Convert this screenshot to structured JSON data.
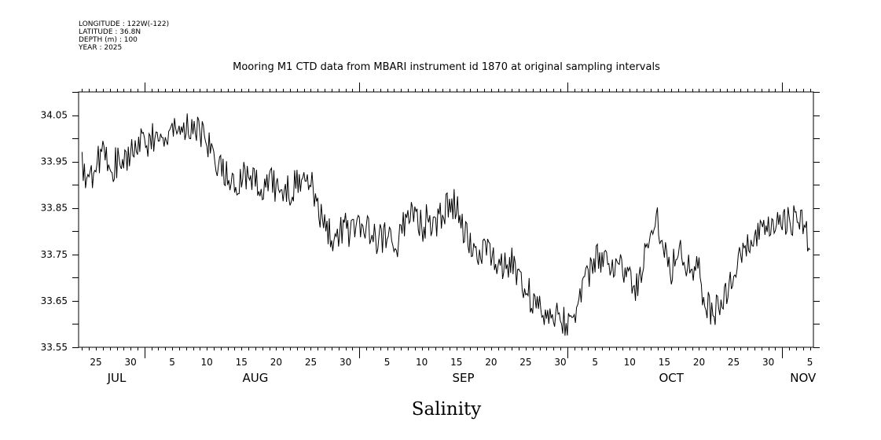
{
  "header": {
    "longitude": "LONGITUDE : 122W(-122)",
    "latitude": "LATITUDE : 36.8N",
    "depth": "DEPTH (m) : 100",
    "year": "YEAR : 2025"
  },
  "chart_data": {
    "type": "line",
    "title": "Mooring M1 CTD data from MBARI instrument id 1870 at original sampling intervals",
    "xlabel": "Salinity",
    "ylabel": "",
    "x_range": [
      "2025-07-23",
      "2025-11-05"
    ],
    "ylim": [
      33.55,
      34.1
    ],
    "y_ticks": [
      "33.55",
      "33.65",
      "33.75",
      "33.85",
      "33.95",
      "34.05"
    ],
    "x_day_ticks": [
      {
        "date": "2025-07-25",
        "label": "25"
      },
      {
        "date": "2025-07-30",
        "label": "30"
      },
      {
        "date": "2025-08-05",
        "label": "5"
      },
      {
        "date": "2025-08-10",
        "label": "10"
      },
      {
        "date": "2025-08-15",
        "label": "15"
      },
      {
        "date": "2025-08-20",
        "label": "20"
      },
      {
        "date": "2025-08-25",
        "label": "25"
      },
      {
        "date": "2025-08-30",
        "label": "30"
      },
      {
        "date": "2025-09-05",
        "label": "5"
      },
      {
        "date": "2025-09-10",
        "label": "10"
      },
      {
        "date": "2025-09-15",
        "label": "15"
      },
      {
        "date": "2025-09-20",
        "label": "20"
      },
      {
        "date": "2025-09-25",
        "label": "25"
      },
      {
        "date": "2025-09-30",
        "label": "30"
      },
      {
        "date": "2025-10-05",
        "label": "5"
      },
      {
        "date": "2025-10-10",
        "label": "10"
      },
      {
        "date": "2025-10-15",
        "label": "15"
      },
      {
        "date": "2025-10-20",
        "label": "20"
      },
      {
        "date": "2025-10-25",
        "label": "25"
      },
      {
        "date": "2025-10-30",
        "label": "30"
      },
      {
        "date": "2025-11-05",
        "label": "5"
      }
    ],
    "x_month_labels": [
      {
        "date": "2025-07-28",
        "label": "JUL"
      },
      {
        "date": "2025-08-17",
        "label": "AUG"
      },
      {
        "date": "2025-09-16",
        "label": "SEP"
      },
      {
        "date": "2025-10-16",
        "label": "OCT"
      },
      {
        "date": "2025-11-04",
        "label": "NOV"
      }
    ],
    "x_month_boundaries": [
      "2025-08-01",
      "2025-09-01",
      "2025-10-01",
      "2025-11-01"
    ],
    "grid": false,
    "series": [
      {
        "points": [
          [
            "2025-07-23",
            33.94
          ],
          [
            "2025-07-24",
            33.9
          ],
          [
            "2025-07-25",
            33.95
          ],
          [
            "2025-07-26",
            33.97
          ],
          [
            "2025-07-27",
            33.93
          ],
          [
            "2025-07-28",
            33.95
          ],
          [
            "2025-07-29",
            33.94
          ],
          [
            "2025-07-30",
            33.97
          ],
          [
            "2025-07-31",
            33.99
          ],
          [
            "2025-08-01",
            33.99
          ],
          [
            "2025-08-02",
            34.0
          ],
          [
            "2025-08-03",
            34.01
          ],
          [
            "2025-08-04",
            34.0
          ],
          [
            "2025-08-05",
            34.01
          ],
          [
            "2025-08-06",
            34.03
          ],
          [
            "2025-08-07",
            34.02
          ],
          [
            "2025-08-08",
            34.02
          ],
          [
            "2025-08-09",
            34.01
          ],
          [
            "2025-08-10",
            34.0
          ],
          [
            "2025-08-11",
            33.97
          ],
          [
            "2025-08-12",
            33.93
          ],
          [
            "2025-08-13",
            33.92
          ],
          [
            "2025-08-14",
            33.91
          ],
          [
            "2025-08-15",
            33.92
          ],
          [
            "2025-08-16",
            33.91
          ],
          [
            "2025-08-17",
            33.9
          ],
          [
            "2025-08-18",
            33.89
          ],
          [
            "2025-08-19",
            33.91
          ],
          [
            "2025-08-20",
            33.89
          ],
          [
            "2025-08-21",
            33.9
          ],
          [
            "2025-08-22",
            33.89
          ],
          [
            "2025-08-23",
            33.91
          ],
          [
            "2025-08-24",
            33.92
          ],
          [
            "2025-08-25",
            33.9
          ],
          [
            "2025-08-26",
            33.86
          ],
          [
            "2025-08-27",
            33.81
          ],
          [
            "2025-08-28",
            33.79
          ],
          [
            "2025-08-29",
            33.8
          ],
          [
            "2025-08-30",
            33.81
          ],
          [
            "2025-08-31",
            33.79
          ],
          [
            "2025-09-01",
            33.81
          ],
          [
            "2025-09-02",
            33.8
          ],
          [
            "2025-09-03",
            33.79
          ],
          [
            "2025-09-04",
            33.78
          ],
          [
            "2025-09-05",
            33.8
          ],
          [
            "2025-09-06",
            33.77
          ],
          [
            "2025-09-07",
            33.79
          ],
          [
            "2025-09-08",
            33.84
          ],
          [
            "2025-09-09",
            33.82
          ],
          [
            "2025-09-10",
            33.81
          ],
          [
            "2025-09-11",
            33.83
          ],
          [
            "2025-09-12",
            33.81
          ],
          [
            "2025-09-13",
            33.84
          ],
          [
            "2025-09-14",
            33.85
          ],
          [
            "2025-09-15",
            33.86
          ],
          [
            "2025-09-16",
            33.81
          ],
          [
            "2025-09-17",
            33.77
          ],
          [
            "2025-09-18",
            33.76
          ],
          [
            "2025-09-19",
            33.75
          ],
          [
            "2025-09-20",
            33.76
          ],
          [
            "2025-09-21",
            33.74
          ],
          [
            "2025-09-22",
            33.72
          ],
          [
            "2025-09-23",
            33.73
          ],
          [
            "2025-09-24",
            33.71
          ],
          [
            "2025-09-25",
            33.68
          ],
          [
            "2025-09-26",
            33.65
          ],
          [
            "2025-09-27",
            33.63
          ],
          [
            "2025-09-28",
            33.62
          ],
          [
            "2025-09-29",
            33.63
          ],
          [
            "2025-09-30",
            33.62
          ],
          [
            "2025-10-01",
            33.6
          ],
          [
            "2025-10-02",
            33.63
          ],
          [
            "2025-10-03",
            33.66
          ],
          [
            "2025-10-04",
            33.7
          ],
          [
            "2025-10-05",
            33.74
          ],
          [
            "2025-10-06",
            33.74
          ],
          [
            "2025-10-07",
            33.72
          ],
          [
            "2025-10-08",
            33.73
          ],
          [
            "2025-10-09",
            33.72
          ],
          [
            "2025-10-10",
            33.69
          ],
          [
            "2025-10-11",
            33.68
          ],
          [
            "2025-10-12",
            33.73
          ],
          [
            "2025-10-13",
            33.8
          ],
          [
            "2025-10-14",
            33.83
          ],
          [
            "2025-10-15",
            33.76
          ],
          [
            "2025-10-16",
            33.72
          ],
          [
            "2025-10-17",
            33.77
          ],
          [
            "2025-10-18",
            33.74
          ],
          [
            "2025-10-19",
            33.73
          ],
          [
            "2025-10-20",
            33.71
          ],
          [
            "2025-10-21",
            33.64
          ],
          [
            "2025-10-22",
            33.62
          ],
          [
            "2025-10-23",
            33.65
          ],
          [
            "2025-10-24",
            33.67
          ],
          [
            "2025-10-25",
            33.7
          ],
          [
            "2025-10-26",
            33.74
          ],
          [
            "2025-10-27",
            33.77
          ],
          [
            "2025-10-28",
            33.78
          ],
          [
            "2025-10-29",
            33.79
          ],
          [
            "2025-10-30",
            33.8
          ],
          [
            "2025-10-31",
            33.81
          ],
          [
            "2025-11-01",
            33.82
          ],
          [
            "2025-11-02",
            33.83
          ],
          [
            "2025-11-03",
            33.82
          ],
          [
            "2025-11-04",
            33.82
          ],
          [
            "2025-11-05",
            33.76
          ]
        ]
      }
    ]
  }
}
